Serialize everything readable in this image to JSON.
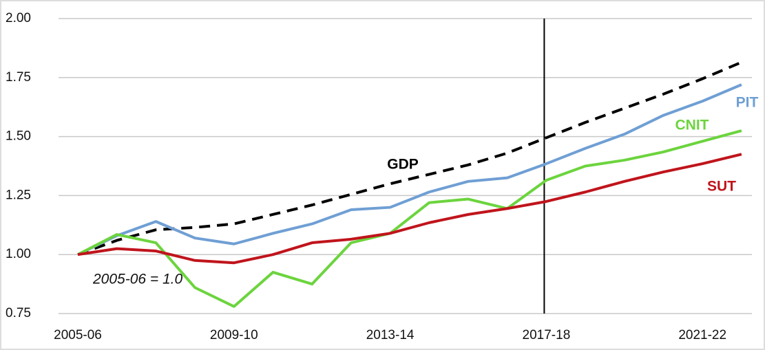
{
  "chart_data": {
    "type": "line",
    "categories": [
      "2005-06",
      null,
      null,
      null,
      "2009-10",
      null,
      null,
      null,
      "2013-14",
      null,
      null,
      null,
      "2017-18",
      null,
      null,
      null,
      "2021-22",
      null
    ],
    "series": [
      {
        "name": "GDP",
        "color": "#000000",
        "dashed": true,
        "values": [
          1.0,
          1.06,
          1.105,
          1.115,
          1.13,
          1.17,
          1.21,
          1.255,
          1.3,
          1.34,
          1.38,
          1.43,
          1.495,
          1.56,
          1.62,
          1.68,
          1.745,
          1.815
        ]
      },
      {
        "name": "PIT",
        "color": "#6f9fd4",
        "values": [
          1.0,
          1.08,
          1.14,
          1.07,
          1.045,
          1.09,
          1.13,
          1.19,
          1.2,
          1.265,
          1.31,
          1.325,
          1.385,
          1.45,
          1.51,
          1.59,
          1.65,
          1.72
        ]
      },
      {
        "name": "CNIT",
        "color": "#6cd43e",
        "values": [
          1.0,
          1.085,
          1.05,
          0.86,
          0.78,
          0.925,
          0.875,
          1.05,
          1.09,
          1.22,
          1.235,
          1.195,
          1.315,
          1.375,
          1.4,
          1.435,
          1.48,
          1.525
        ]
      },
      {
        "name": "SUT",
        "color": "#c0141c",
        "values": [
          1.0,
          1.025,
          1.015,
          0.975,
          0.965,
          1.0,
          1.05,
          1.065,
          1.09,
          1.135,
          1.17,
          1.195,
          1.225,
          1.265,
          1.31,
          1.35,
          1.385,
          1.425
        ]
      }
    ],
    "annotation": "2005-06 = 1.0",
    "reference_line": "2017-18",
    "ylim": [
      0.75,
      2.0
    ],
    "yticks": [
      {
        "value": 0.75,
        "label": "0.75"
      },
      {
        "value": 1,
        "label": "1.00"
      },
      {
        "value": 1.25,
        "label": "1.25"
      },
      {
        "value": 1.5,
        "label": "1.50"
      },
      {
        "value": 1.75,
        "label": "1.75"
      },
      {
        "value": 2,
        "label": "2.00"
      }
    ],
    "grid": true
  }
}
